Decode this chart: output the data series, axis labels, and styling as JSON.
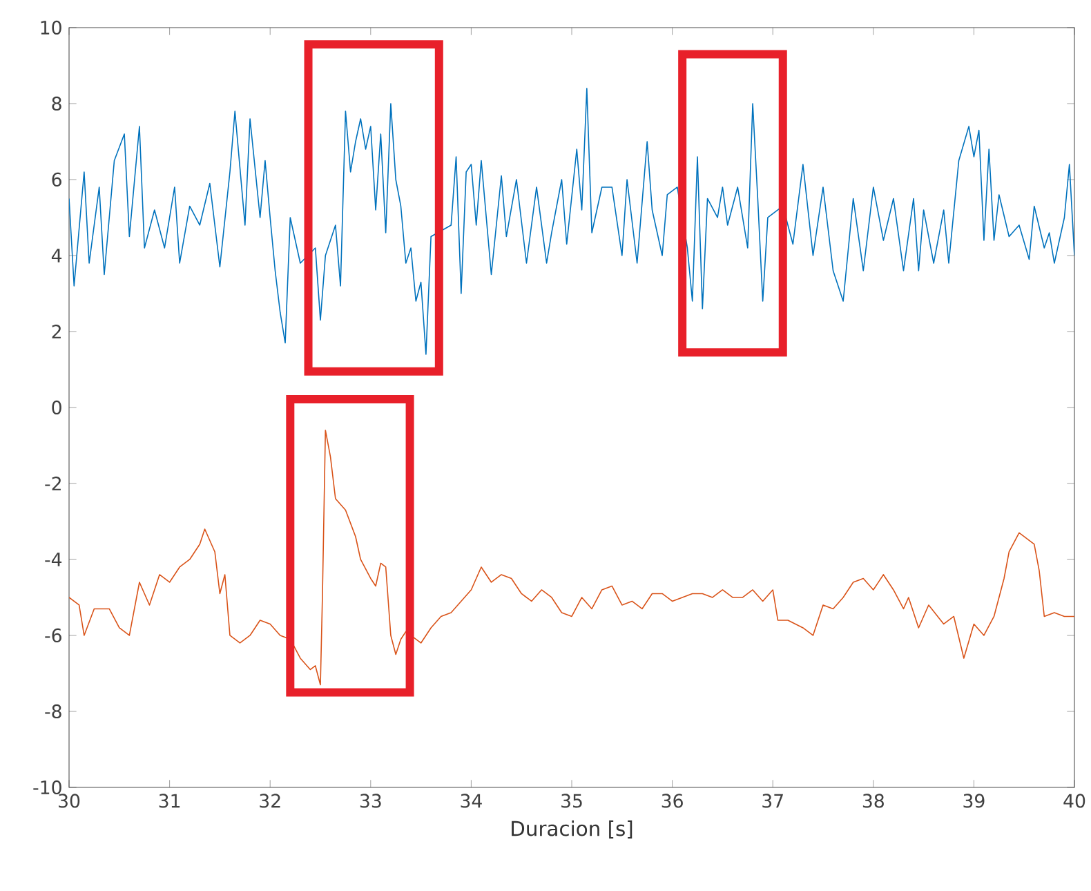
{
  "chart_data": {
    "type": "line",
    "xlabel": "Duracion [s]",
    "xlim": [
      30,
      40
    ],
    "ylim": [
      -10,
      10
    ],
    "xticks": [
      30,
      31,
      32,
      33,
      34,
      35,
      36,
      37,
      38,
      39,
      40
    ],
    "yticks": [
      -10,
      -8,
      -6,
      -4,
      -2,
      0,
      2,
      4,
      6,
      8,
      10
    ],
    "series": [
      {
        "color": "#0072bd",
        "x": [
          30.0,
          30.05,
          30.15,
          30.2,
          30.3,
          30.35,
          30.45,
          30.55,
          30.6,
          30.7,
          30.75,
          30.85,
          30.95,
          31.05,
          31.1,
          31.2,
          31.3,
          31.4,
          31.5,
          31.6,
          31.65,
          31.75,
          31.8,
          31.9,
          31.95,
          32.0,
          32.05,
          32.1,
          32.15,
          32.2,
          32.3,
          32.35,
          32.4,
          32.45,
          32.5,
          32.55,
          32.65,
          32.7,
          32.75,
          32.8,
          32.85,
          32.9,
          32.95,
          33.0,
          33.05,
          33.1,
          33.15,
          33.2,
          33.25,
          33.3,
          33.35,
          33.4,
          33.45,
          33.5,
          33.55,
          33.6,
          33.65,
          33.7,
          33.8,
          33.85,
          33.9,
          33.95,
          34.0,
          34.05,
          34.1,
          34.2,
          34.3,
          34.35,
          34.45,
          34.55,
          34.65,
          34.75,
          34.8,
          34.9,
          34.95,
          35.05,
          35.1,
          35.15,
          35.2,
          35.3,
          35.4,
          35.5,
          35.55,
          35.65,
          35.75,
          35.8,
          35.9,
          35.95,
          36.05,
          36.15,
          36.2,
          36.25,
          36.3,
          36.35,
          36.45,
          36.5,
          36.55,
          36.65,
          36.75,
          36.8,
          36.85,
          36.9,
          36.95,
          37.1,
          37.2,
          37.3,
          37.4,
          37.5,
          37.6,
          37.7,
          37.8,
          37.9,
          38.0,
          38.1,
          38.2,
          38.3,
          38.4,
          38.45,
          38.5,
          38.6,
          38.7,
          38.75,
          38.85,
          38.95,
          39.0,
          39.05,
          39.1,
          39.15,
          39.2,
          39.25,
          39.35,
          39.45,
          39.55,
          39.6,
          39.7,
          39.75,
          39.8,
          39.9,
          39.95,
          40.0
        ],
        "values": [
          5.5,
          3.2,
          6.2,
          3.8,
          5.8,
          3.5,
          6.5,
          7.2,
          4.5,
          7.4,
          4.2,
          5.2,
          4.2,
          5.8,
          3.8,
          5.3,
          4.8,
          5.9,
          3.7,
          6.2,
          7.8,
          4.8,
          7.6,
          5.0,
          6.5,
          5.0,
          3.6,
          2.5,
          1.7,
          5.0,
          3.8,
          null,
          null,
          4.2,
          2.3,
          4.0,
          4.8,
          3.2,
          7.8,
          6.2,
          7.0,
          7.6,
          6.8,
          7.4,
          5.2,
          7.2,
          4.6,
          8.0,
          6.0,
          5.3,
          3.8,
          4.2,
          2.8,
          3.3,
          1.4,
          4.5,
          null,
          null,
          4.8,
          6.6,
          3.0,
          6.2,
          6.4,
          4.8,
          6.5,
          3.5,
          6.1,
          4.5,
          6.0,
          3.8,
          5.8,
          3.8,
          4.6,
          6.0,
          4.3,
          6.8,
          5.2,
          8.4,
          4.6,
          5.8,
          5.8,
          4.0,
          6.0,
          3.8,
          7.0,
          5.2,
          4.0,
          5.6,
          5.8,
          4.2,
          2.8,
          6.6,
          2.6,
          5.5,
          5.0,
          5.8,
          4.8,
          5.8,
          4.2,
          8.0,
          5.5,
          2.8,
          5.0,
          5.3,
          4.3,
          6.4,
          4.0,
          5.8,
          3.6,
          2.8,
          5.5,
          3.6,
          5.8,
          4.4,
          5.5,
          3.6,
          5.5,
          3.6,
          5.2,
          3.8,
          5.2,
          3.8,
          6.5,
          7.4,
          6.6,
          7.3,
          4.4,
          6.8,
          4.4,
          5.6,
          4.5,
          4.8,
          3.9,
          5.3,
          4.2,
          4.6,
          3.8,
          5.0,
          6.4,
          4.0
        ]
      },
      {
        "color": "#d95319",
        "x": [
          30.0,
          30.1,
          30.15,
          30.25,
          30.4,
          30.5,
          30.6,
          30.7,
          30.8,
          30.9,
          31.0,
          31.1,
          31.2,
          31.3,
          31.35,
          31.45,
          31.5,
          31.55,
          31.6,
          31.7,
          31.8,
          31.9,
          32.0,
          32.1,
          32.2,
          32.3,
          32.4,
          32.45,
          32.5,
          32.52,
          32.55,
          32.6,
          32.65,
          32.75,
          32.85,
          32.9,
          33.0,
          33.05,
          33.1,
          33.15,
          33.2,
          33.25,
          33.3,
          33.35,
          33.45,
          33.5,
          33.6,
          33.7,
          33.8,
          33.9,
          34.0,
          34.1,
          34.2,
          34.3,
          34.4,
          34.5,
          34.6,
          34.7,
          34.8,
          34.9,
          35.0,
          35.1,
          35.2,
          35.3,
          35.4,
          35.5,
          35.6,
          35.7,
          35.8,
          35.9,
          36.0,
          36.1,
          36.2,
          36.3,
          36.4,
          36.5,
          36.6,
          36.7,
          36.8,
          36.9,
          37.0,
          37.05,
          37.15,
          37.3,
          37.4,
          37.5,
          37.6,
          37.7,
          37.8,
          37.9,
          38.0,
          38.1,
          38.2,
          38.3,
          38.35,
          38.45,
          38.55,
          38.7,
          38.8,
          38.9,
          39.0,
          39.1,
          39.2,
          39.3,
          39.35,
          39.45,
          39.6,
          39.65,
          39.7,
          39.8,
          39.9,
          40.0
        ],
        "values": [
          -5.0,
          -5.2,
          -6.0,
          -5.3,
          -5.3,
          -5.8,
          -6.0,
          -4.6,
          -5.2,
          -4.4,
          -4.6,
          -4.2,
          -4.0,
          -3.6,
          -3.2,
          -3.8,
          -4.9,
          -4.4,
          -6.0,
          -6.2,
          -6.0,
          -5.6,
          -5.7,
          -6.0,
          -6.1,
          -6.6,
          -6.9,
          -6.8,
          -7.3,
          -5.0,
          -0.6,
          -1.3,
          -2.4,
          -2.7,
          -3.4,
          -4.0,
          -4.5,
          -4.7,
          -4.1,
          -4.2,
          -6.0,
          -6.5,
          -6.1,
          -5.9,
          -6.1,
          -6.2,
          -5.8,
          -5.5,
          -5.4,
          -5.1,
          -4.8,
          -4.2,
          -4.6,
          -4.4,
          -4.5,
          -4.9,
          -5.1,
          -4.8,
          -5.0,
          -5.4,
          -5.5,
          -5.0,
          -5.3,
          -4.8,
          -4.7,
          -5.2,
          -5.1,
          -5.3,
          -4.9,
          -4.9,
          -5.1,
          -5.0,
          -4.9,
          -4.9,
          -5.0,
          -4.8,
          -5.0,
          -5.0,
          -4.8,
          -5.1,
          -4.8,
          -5.6,
          -5.6,
          -5.8,
          -6.0,
          -5.2,
          -5.3,
          -5.0,
          -4.6,
          -4.5,
          -4.8,
          -4.4,
          -4.8,
          -5.3,
          -5.0,
          -5.8,
          -5.2,
          -5.7,
          -5.5,
          -6.6,
          -5.7,
          -6.0,
          -5.5,
          -4.5,
          -3.8,
          -3.3,
          -3.6,
          -4.3,
          -5.5,
          -5.4,
          -5.5,
          -5.5
        ]
      }
    ]
  }
}
